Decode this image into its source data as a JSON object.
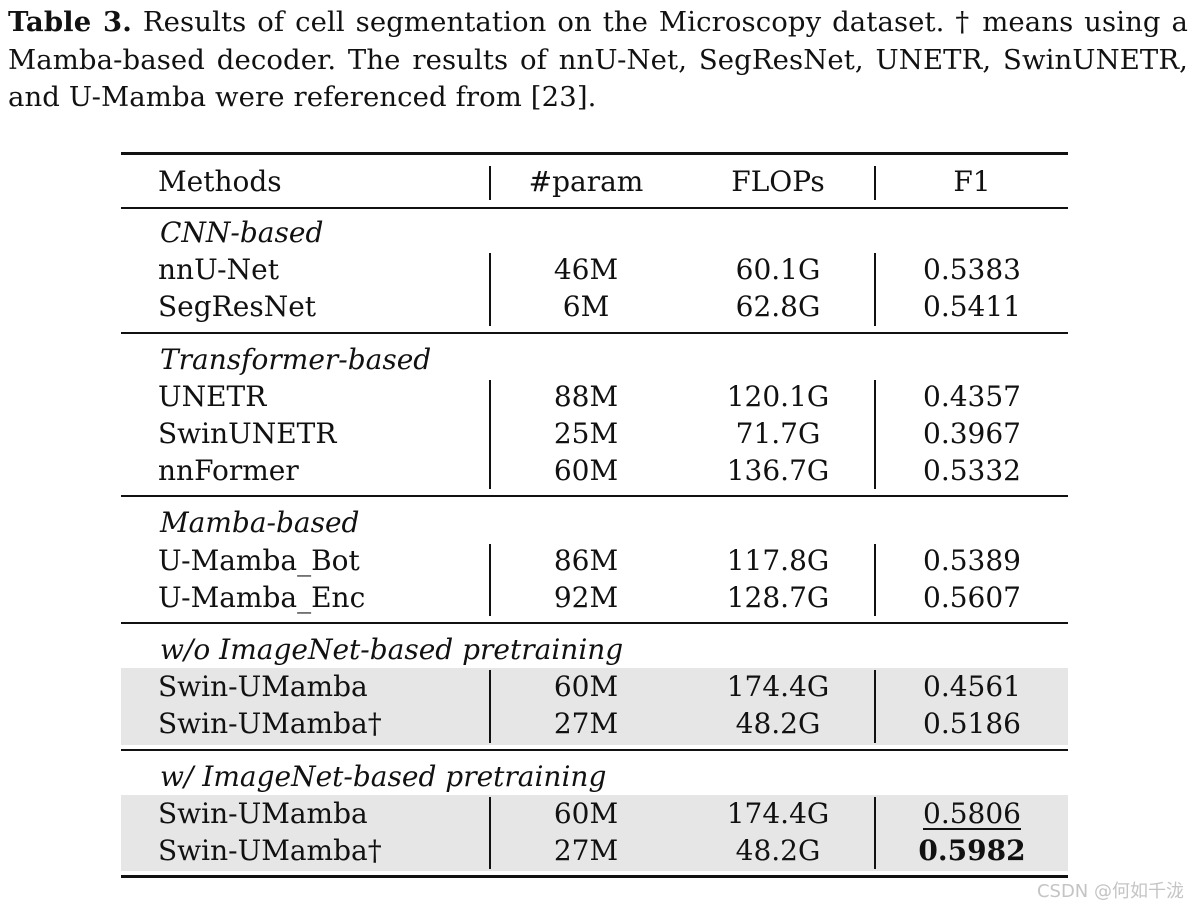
{
  "caption": {
    "label": "Table 3.",
    "text": "Results of cell segmentation on the Microscopy dataset. † means using a Mamba-based decoder. The results of nnU-Net, SegResNet, UNETR, SwinUNETR, and U-Mamba were referenced from [23]."
  },
  "table": {
    "headers": [
      "Methods",
      "#param",
      "FLOPs",
      "F1"
    ],
    "groups": [
      {
        "title": "CNN-based",
        "shaded": false,
        "rows": [
          {
            "method": "nnU-Net",
            "param": "46M",
            "flops": "60.1G",
            "f1": "0.5383",
            "f1_style": ""
          },
          {
            "method": "SegResNet",
            "param": "6M",
            "flops": "62.8G",
            "f1": "0.5411",
            "f1_style": ""
          }
        ]
      },
      {
        "title": "Transformer-based",
        "shaded": false,
        "rows": [
          {
            "method": "UNETR",
            "param": "88M",
            "flops": "120.1G",
            "f1": "0.4357",
            "f1_style": ""
          },
          {
            "method": "SwinUNETR",
            "param": "25M",
            "flops": "71.7G",
            "f1": "0.3967",
            "f1_style": ""
          },
          {
            "method": "nnFormer",
            "param": "60M",
            "flops": "136.7G",
            "f1": "0.5332",
            "f1_style": ""
          }
        ]
      },
      {
        "title": "Mamba-based",
        "shaded": false,
        "rows": [
          {
            "method": "U-Mamba_Bot",
            "param": "86M",
            "flops": "117.8G",
            "f1": "0.5389",
            "f1_style": ""
          },
          {
            "method": "U-Mamba_Enc",
            "param": "92M",
            "flops": "128.7G",
            "f1": "0.5607",
            "f1_style": ""
          }
        ]
      },
      {
        "title": "w/o ImageNet-based pretraining",
        "shaded": true,
        "rows": [
          {
            "method": "Swin-UMamba",
            "param": "60M",
            "flops": "174.4G",
            "f1": "0.4561",
            "f1_style": ""
          },
          {
            "method": "Swin-UMamba†",
            "param": "27M",
            "flops": "48.2G",
            "f1": "0.5186",
            "f1_style": ""
          }
        ]
      },
      {
        "title": "w/ ImageNet-based pretraining",
        "shaded": true,
        "rows": [
          {
            "method": "Swin-UMamba",
            "param": "60M",
            "flops": "174.4G",
            "f1": "0.5806",
            "f1_style": "underline"
          },
          {
            "method": "Swin-UMamba†",
            "param": "27M",
            "flops": "48.2G",
            "f1": "0.5982",
            "f1_style": "bold"
          }
        ]
      }
    ]
  },
  "watermark": "CSDN @何如千泷",
  "colors": {
    "shade": "#e6e6e6",
    "rule": "#111111",
    "watermark": "#c4c4c4"
  }
}
